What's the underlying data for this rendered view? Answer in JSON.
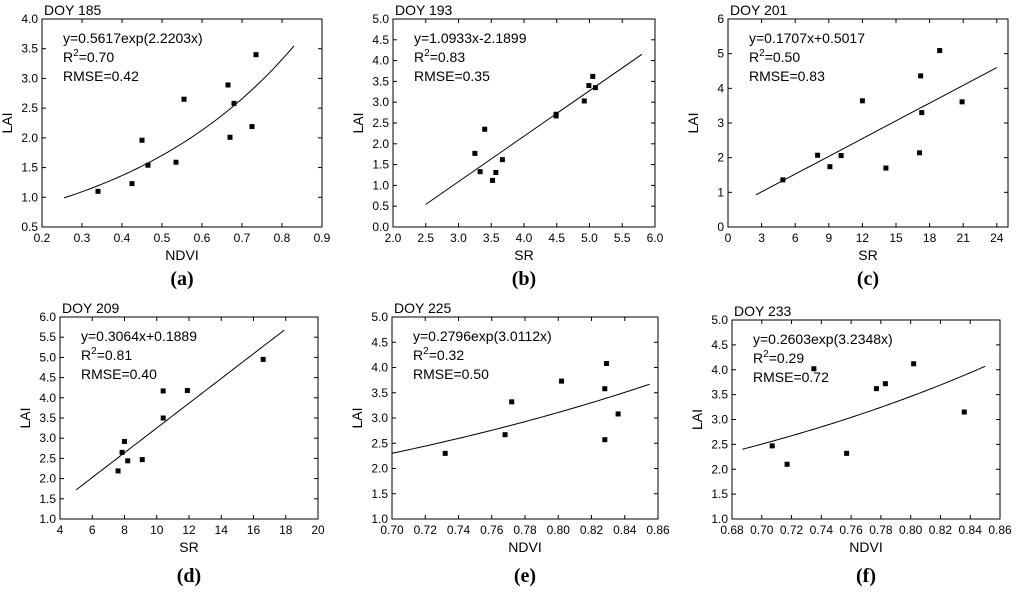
{
  "figure": {
    "chart_data": [
      {
        "type": "scatter",
        "title": "DOY 185",
        "panel_label": "(a)",
        "xlabel": "NDVI",
        "ylabel": "LAI",
        "xlim": [
          0.2,
          0.9
        ],
        "ylim": [
          0.5,
          4.0
        ],
        "xticks": [
          0.2,
          0.3,
          0.4,
          0.5,
          0.6,
          0.7,
          0.8,
          0.9
        ],
        "xtick_labels": [
          "0.2",
          "0.3",
          "0.4",
          "0.5",
          "0.6",
          "0.7",
          "0.8",
          "0.9"
        ],
        "yticks": [
          0.5,
          1.0,
          1.5,
          2.0,
          2.5,
          3.0,
          3.5,
          4.0
        ],
        "ytick_labels": [
          "0.5",
          "1.0",
          "1.5",
          "2.0",
          "2.5",
          "3.0",
          "3.5",
          "4.0"
        ],
        "points": [
          [
            0.34,
            1.1
          ],
          [
            0.425,
            1.23
          ],
          [
            0.45,
            1.96
          ],
          [
            0.465,
            1.54
          ],
          [
            0.535,
            1.59
          ],
          [
            0.555,
            2.65
          ],
          [
            0.665,
            2.89
          ],
          [
            0.67,
            2.01
          ],
          [
            0.68,
            2.58
          ],
          [
            0.725,
            2.19
          ],
          [
            0.735,
            3.4
          ]
        ],
        "fit": {
          "kind": "exp",
          "a": 0.5617,
          "b": 2.2203,
          "x_range": [
            0.255,
            0.83
          ]
        },
        "annotation": {
          "equation": "y=0.5617exp(2.2203x)",
          "r2_prefix": "R",
          "r2_sup": "2",
          "r2_value": "=0.70",
          "rmse": "RMSE=0.42"
        }
      },
      {
        "type": "scatter",
        "title": "DOY 193",
        "panel_label": "(b)",
        "xlabel": "SR",
        "ylabel": "LAI",
        "xlim": [
          2.0,
          6.0
        ],
        "ylim": [
          0.0,
          5.0
        ],
        "xticks": [
          2.0,
          2.5,
          3.0,
          3.5,
          4.0,
          4.5,
          5.0,
          5.5,
          6.0
        ],
        "xtick_labels": [
          "2.0",
          "2.5",
          "3.0",
          "3.5",
          "4.0",
          "4.5",
          "5.0",
          "5.5",
          "6.0"
        ],
        "yticks": [
          0.0,
          0.5,
          1.0,
          1.5,
          2.0,
          2.5,
          3.0,
          3.5,
          4.0,
          4.5,
          5.0
        ],
        "ytick_labels": [
          "0.0",
          "0.5",
          "1.0",
          "1.5",
          "2.0",
          "2.5",
          "3.0",
          "3.5",
          "4.0",
          "4.5",
          "5.0"
        ],
        "points": [
          [
            3.25,
            1.77
          ],
          [
            3.33,
            1.33
          ],
          [
            3.4,
            2.35
          ],
          [
            3.52,
            1.12
          ],
          [
            3.57,
            1.31
          ],
          [
            3.67,
            1.62
          ],
          [
            4.49,
            2.71
          ],
          [
            4.49,
            2.67
          ],
          [
            4.92,
            3.03
          ],
          [
            4.99,
            3.4
          ],
          [
            5.05,
            3.62
          ],
          [
            5.09,
            3.35
          ]
        ],
        "fit": {
          "kind": "linear",
          "a": 1.0933,
          "b": -2.1899,
          "x_range": [
            2.5,
            5.8
          ]
        },
        "annotation": {
          "equation": "y=1.0933x-2.1899",
          "r2_prefix": "R",
          "r2_sup": "2",
          "r2_value": "=0.83",
          "rmse": "RMSE=0.35"
        }
      },
      {
        "type": "scatter",
        "title": "DOY 201",
        "panel_label": "(c)",
        "xlabel": "SR",
        "ylabel": "LAI",
        "xlim": [
          0,
          25
        ],
        "ylim": [
          0,
          6
        ],
        "xticks": [
          0,
          3,
          6,
          9,
          12,
          15,
          18,
          21,
          24
        ],
        "xtick_labels": [
          "0",
          "3",
          "6",
          "9",
          "12",
          "15",
          "18",
          "21",
          "24"
        ],
        "yticks": [
          0,
          1,
          2,
          3,
          4,
          5,
          6
        ],
        "ytick_labels": [
          "0",
          "1",
          "2",
          "3",
          "4",
          "5",
          "6"
        ],
        "points": [
          [
            4.9,
            1.36
          ],
          [
            8.0,
            2.07
          ],
          [
            9.1,
            1.74
          ],
          [
            10.1,
            2.06
          ],
          [
            12.0,
            3.64
          ],
          [
            14.1,
            1.7
          ],
          [
            17.1,
            2.14
          ],
          [
            17.2,
            4.36
          ],
          [
            17.3,
            3.3
          ],
          [
            18.9,
            5.09
          ],
          [
            20.9,
            3.61
          ]
        ],
        "fit": {
          "kind": "linear",
          "a": 0.1707,
          "b": 0.5017,
          "x_range": [
            2.5,
            24.0
          ]
        },
        "annotation": {
          "equation": "y=0.1707x+0.5017",
          "r2_prefix": "R",
          "r2_sup": "2",
          "r2_value": "=0.50",
          "rmse": "RMSE=0.83"
        }
      },
      {
        "type": "scatter",
        "title": "DOY 209",
        "panel_label": "(d)",
        "xlabel": "SR",
        "ylabel": "LAI",
        "xlim": [
          4,
          20
        ],
        "ylim": [
          1.0,
          6.0
        ],
        "xticks": [
          4,
          6,
          8,
          10,
          12,
          14,
          16,
          18,
          20
        ],
        "xtick_labels": [
          "4",
          "6",
          "8",
          "10",
          "12",
          "14",
          "16",
          "18",
          "20"
        ],
        "yticks": [
          1.0,
          1.5,
          2.0,
          2.5,
          3.0,
          3.5,
          4.0,
          4.5,
          5.0,
          5.5,
          6.0
        ],
        "ytick_labels": [
          "1.0",
          "1.5",
          "2.0",
          "2.5",
          "3.0",
          "3.5",
          "4.0",
          "4.5",
          "5.0",
          "5.5",
          "6.0"
        ],
        "points": [
          [
            7.6,
            2.19
          ],
          [
            7.85,
            2.65
          ],
          [
            8.0,
            2.92
          ],
          [
            8.2,
            2.44
          ],
          [
            9.1,
            2.47
          ],
          [
            10.4,
            3.5
          ],
          [
            10.4,
            4.17
          ],
          [
            11.9,
            4.18
          ],
          [
            16.6,
            4.95
          ]
        ],
        "fit": {
          "kind": "linear",
          "a": 0.3064,
          "b": 0.1889,
          "x_range": [
            5.0,
            17.9
          ]
        },
        "annotation": {
          "equation": "y=0.3064x+0.1889",
          "r2_prefix": "R",
          "r2_sup": "2",
          "r2_value": "=0.81",
          "rmse": "RMSE=0.40"
        }
      },
      {
        "type": "scatter",
        "title": "DOY 225",
        "panel_label": "(e)",
        "xlabel": "NDVI",
        "ylabel": "LAI",
        "xlim": [
          0.7,
          0.86
        ],
        "ylim": [
          1.0,
          5.0
        ],
        "xticks": [
          0.7,
          0.72,
          0.74,
          0.76,
          0.78,
          0.8,
          0.82,
          0.84,
          0.86
        ],
        "xtick_labels": [
          "0.70",
          "0.72",
          "0.74",
          "0.76",
          "0.78",
          "0.80",
          "0.82",
          "0.84",
          "0.86"
        ],
        "yticks": [
          1.0,
          1.5,
          2.0,
          2.5,
          3.0,
          3.5,
          4.0,
          4.5,
          5.0
        ],
        "ytick_labels": [
          "1.0",
          "1.5",
          "2.0",
          "2.5",
          "3.0",
          "3.5",
          "4.0",
          "4.5",
          "5.0"
        ],
        "points": [
          [
            0.732,
            2.3
          ],
          [
            0.768,
            2.67
          ],
          [
            0.772,
            3.32
          ],
          [
            0.802,
            3.73
          ],
          [
            0.828,
            3.58
          ],
          [
            0.829,
            4.08
          ],
          [
            0.828,
            2.57
          ],
          [
            0.836,
            3.08
          ]
        ],
        "fit": {
          "kind": "exp",
          "a": 0.2796,
          "b": 3.0112,
          "x_range": [
            0.7,
            0.855
          ]
        },
        "annotation": {
          "equation": "y=0.2796exp(3.0112x)",
          "r2_prefix": "R",
          "r2_sup": "2",
          "r2_value": "=0.32",
          "rmse": "RMSE=0.50"
        }
      },
      {
        "type": "scatter",
        "title": "DOY 233",
        "panel_label": "(f)",
        "xlabel": "NDVI",
        "ylabel": "LAI",
        "xlim": [
          0.68,
          0.86
        ],
        "ylim": [
          1.0,
          5.0
        ],
        "xticks": [
          0.68,
          0.7,
          0.72,
          0.74,
          0.76,
          0.78,
          0.8,
          0.82,
          0.84,
          0.86
        ],
        "xtick_labels": [
          "0.68",
          "0.70",
          "0.72",
          "0.74",
          "0.76",
          "0.78",
          "0.80",
          "0.82",
          "0.84",
          "0.86"
        ],
        "yticks": [
          1.0,
          1.5,
          2.0,
          2.5,
          3.0,
          3.5,
          4.0,
          4.5,
          5.0
        ],
        "ytick_labels": [
          "1.0",
          "1.5",
          "2.0",
          "2.5",
          "3.0",
          "3.5",
          "4.0",
          "4.5",
          "5.0"
        ],
        "points": [
          [
            0.707,
            2.47
          ],
          [
            0.717,
            2.1
          ],
          [
            0.735,
            4.02
          ],
          [
            0.757,
            2.32
          ],
          [
            0.777,
            3.62
          ],
          [
            0.783,
            3.72
          ],
          [
            0.802,
            4.12
          ],
          [
            0.836,
            3.15
          ]
        ],
        "fit": {
          "kind": "exp",
          "a": 0.2603,
          "b": 3.2348,
          "x_range": [
            0.687,
            0.85
          ]
        },
        "annotation": {
          "equation": "y=0.2603exp(3.2348x)",
          "r2_prefix": "R",
          "r2_sup": "2",
          "r2_value": "=0.29",
          "rmse": "RMSE=0.72"
        }
      }
    ]
  }
}
